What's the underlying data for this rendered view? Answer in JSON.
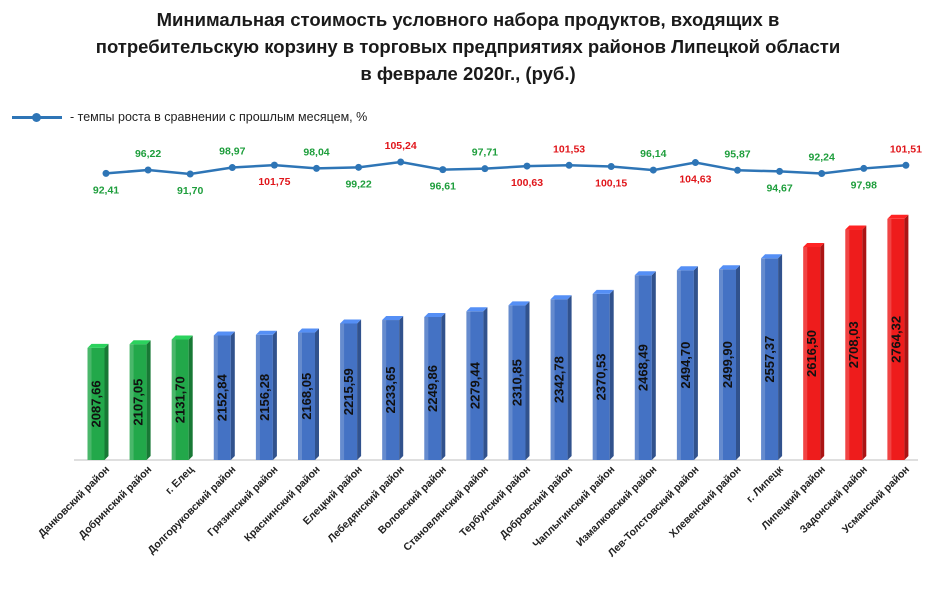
{
  "title": {
    "line1": "Минимальная стоимость условного набора продуктов, входящих в",
    "line2": "потребительскую корзину в торговых предприятиях районов Липецкой области",
    "line3": "в феврале 2020г., (руб.)"
  },
  "legend": {
    "text": "- темпы роста в сравнении с прошлым месяцем, %",
    "line_color": "#2e75b6"
  },
  "colors": {
    "green": "#22a84a",
    "blue": "#4472c4",
    "red": "#ee1c1c",
    "rate_green": "#1e9e3c",
    "rate_red": "#e0161b",
    "line": "#2e75b6"
  },
  "chart_data": {
    "type": "bar",
    "title": "Минимальная стоимость условного набора продуктов, входящих в потребительскую корзину в торговых предприятиях районов Липецкой области в феврале 2020г., (руб.)",
    "categories": [
      "Данковский район",
      "Добринский район",
      "г. Елец",
      "Долгоруковский район",
      "Грязинский район",
      "Краснинский район",
      "Елецкий район",
      "Лебедянский район",
      "Воловский район",
      "Становлянский район",
      "Тербунский район",
      "Добровский район",
      "Чаплыгинский район",
      "Измалковский район",
      "Лев-Толстовский район",
      "Хлевенский район",
      "г. Липецк",
      "Липецкий район",
      "Задонский район",
      "Усманский район"
    ],
    "values": [
      2087.66,
      2107.05,
      2131.7,
      2152.84,
      2156.28,
      2168.05,
      2215.59,
      2233.65,
      2249.86,
      2279.44,
      2310.85,
      2342.78,
      2370.53,
      2468.49,
      2494.7,
      2499.9,
      2557.37,
      2616.5,
      2708.03,
      2764.32
    ],
    "value_labels": [
      "2087,66",
      "2107,05",
      "2131,70",
      "2152,84",
      "2156,28",
      "2168,05",
      "2215,59",
      "2233,65",
      "2249,86",
      "2279,44",
      "2310,85",
      "2342,78",
      "2370,53",
      "2468,49",
      "2494,70",
      "2499,90",
      "2557,37",
      "2616,50",
      "2708,03",
      "2764,32"
    ],
    "bar_colors": [
      "green",
      "green",
      "green",
      "blue",
      "blue",
      "blue",
      "blue",
      "blue",
      "blue",
      "blue",
      "blue",
      "blue",
      "blue",
      "blue",
      "blue",
      "blue",
      "blue",
      "red",
      "red",
      "red"
    ],
    "ylim": [
      1500,
      2800
    ],
    "series_line": {
      "name": "- темпы роста в сравнении с прошлым месяцем, %",
      "values": [
        92.41,
        96.22,
        91.7,
        98.97,
        101.75,
        98.04,
        99.22,
        105.24,
        96.61,
        97.71,
        100.63,
        101.53,
        100.15,
        96.14,
        104.63,
        95.87,
        94.67,
        92.24,
        97.98,
        101.51
      ],
      "labels": [
        "92,41",
        "96,22",
        "91,70",
        "98,97",
        "101,75",
        "98,04",
        "99,22",
        "105,24",
        "96,61",
        "97,71",
        "100,63",
        "101,53",
        "100,15",
        "96,14",
        "104,63",
        "95,87",
        "94,67",
        "92,24",
        "97,98",
        "101,51"
      ],
      "label_positions": [
        "below",
        "above",
        "below",
        "above",
        "below",
        "above",
        "below",
        "above",
        "below",
        "above",
        "below",
        "above",
        "below",
        "above",
        "below",
        "above",
        "below",
        "above",
        "below",
        "above"
      ]
    }
  }
}
